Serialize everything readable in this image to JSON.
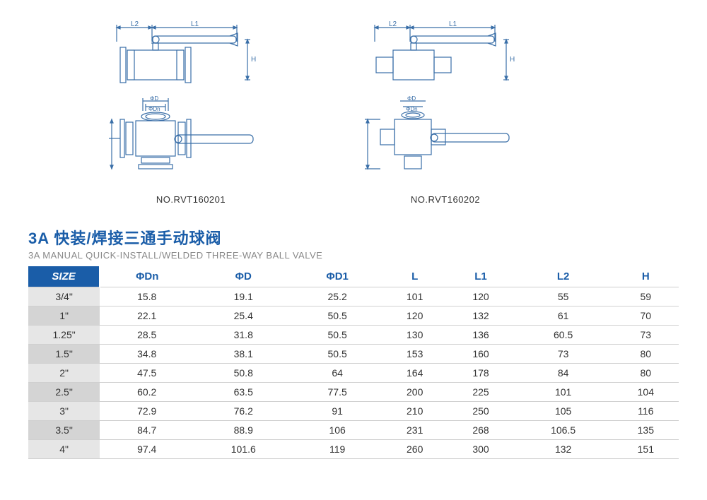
{
  "colors": {
    "primary": "#1a5da8",
    "diagram_stroke": "#3a6fa8",
    "text": "#333333",
    "subtitle": "#888888",
    "row_light": "#e6e6e6",
    "row_dark": "#d4d4d4",
    "border": "#d0d0d0",
    "background": "#ffffff"
  },
  "diagrams": {
    "left_label": "NO.RVT160201",
    "right_label": "NO.RVT160202",
    "dim_labels": {
      "l1": "L1",
      "l2": "L2",
      "h": "H",
      "d": "ΦD",
      "dn": "ΦDn"
    }
  },
  "title": {
    "cn": "3A 快装/焊接三通手动球阀",
    "en": "3A MANUAL QUICK-INSTALL/WELDED THREE-WAY BALL VALVE"
  },
  "table": {
    "type": "table",
    "header_bg": "#1a5da8",
    "header_fg": "#ffffff",
    "col_header_fg": "#1a5da8",
    "fontsize_header": 15,
    "fontsize_cell": 14,
    "columns": [
      "SIZE",
      "ΦDn",
      "ΦD",
      "ΦD1",
      "L",
      "L1",
      "L2",
      "H"
    ],
    "rows": [
      [
        "3/4\"",
        "15.8",
        "19.1",
        "25.2",
        "101",
        "120",
        "55",
        "59"
      ],
      [
        "1\"",
        "22.1",
        "25.4",
        "50.5",
        "120",
        "132",
        "61",
        "70"
      ],
      [
        "1.25\"",
        "28.5",
        "31.8",
        "50.5",
        "130",
        "136",
        "60.5",
        "73"
      ],
      [
        "1.5\"",
        "34.8",
        "38.1",
        "50.5",
        "153",
        "160",
        "73",
        "80"
      ],
      [
        "2\"",
        "47.5",
        "50.8",
        "64",
        "164",
        "178",
        "84",
        "80"
      ],
      [
        "2.5\"",
        "60.2",
        "63.5",
        "77.5",
        "200",
        "225",
        "101",
        "104"
      ],
      [
        "3\"",
        "72.9",
        "76.2",
        "91",
        "210",
        "250",
        "105",
        "116"
      ],
      [
        "3.5\"",
        "84.7",
        "88.9",
        "106",
        "231",
        "268",
        "106.5",
        "135"
      ],
      [
        "4\"",
        "97.4",
        "101.6",
        "119",
        "260",
        "300",
        "132",
        "151"
      ]
    ]
  }
}
